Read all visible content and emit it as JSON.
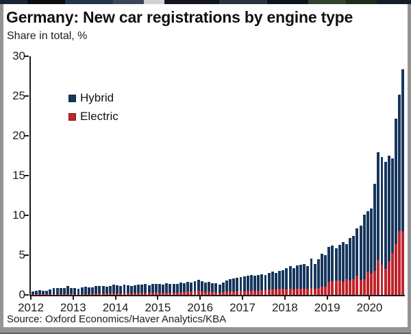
{
  "header": {
    "title": "Germany: New car registrations by engine type",
    "subtitle": "Share in total, %"
  },
  "source": "Source: Oxford Economics/Haver Analytics/KBA",
  "legend": [
    {
      "label": "Hybrid",
      "color": "#17365d"
    },
    {
      "label": "Electric",
      "color": "#c0242c"
    }
  ],
  "chart_data": {
    "type": "bar",
    "stacked": true,
    "title": "Germany: New car registrations by engine type",
    "ylabel": "Share in total, %",
    "x_start": "2012-01",
    "x_end": "2020-10",
    "months_per_year": 12,
    "x_tick_labels": [
      "2012",
      "2013",
      "2014",
      "2015",
      "2016",
      "2017",
      "2018",
      "2019",
      "2020"
    ],
    "ylim": [
      0,
      30
    ],
    "y_ticks": [
      0,
      5,
      10,
      15,
      20,
      25,
      30
    ],
    "grid": false,
    "legend_position": "upper-left",
    "series": [
      {
        "name": "Hybrid",
        "color": "#17365d",
        "values": [
          0.35,
          0.5,
          0.5,
          0.4,
          0.4,
          0.55,
          0.75,
          0.8,
          0.8,
          0.8,
          1.0,
          0.75,
          0.8,
          0.7,
          0.85,
          0.95,
          0.85,
          0.8,
          1.0,
          0.9,
          0.95,
          0.85,
          0.9,
          1.0,
          1.05,
          0.95,
          1.1,
          1.0,
          0.95,
          1.0,
          1.05,
          1.0,
          1.15,
          1.0,
          1.1,
          1.05,
          1.1,
          1.0,
          1.15,
          1.05,
          1.1,
          1.05,
          1.2,
          1.1,
          1.25,
          1.15,
          1.3,
          1.4,
          1.3,
          1.2,
          1.2,
          1.15,
          1.1,
          1.0,
          1.2,
          1.45,
          1.6,
          1.65,
          1.7,
          1.7,
          1.85,
          1.95,
          2.0,
          1.9,
          1.95,
          2.0,
          1.9,
          2.1,
          2.2,
          2.1,
          2.25,
          2.3,
          2.7,
          2.85,
          2.7,
          2.95,
          3.0,
          3.1,
          2.8,
          3.75,
          3.1,
          3.6,
          4.2,
          4.0,
          4.4,
          4.5,
          4.1,
          4.5,
          5.0,
          4.4,
          5.4,
          5.4,
          6.0,
          6.8,
          8.1,
          7.6,
          8.2,
          11.0,
          13.5,
          13.5,
          13.4,
          13.3,
          11.9,
          15.8,
          17.2,
          20.4
        ]
      },
      {
        "name": "Electric",
        "color": "#c0242c",
        "values": [
          0.05,
          0.05,
          0.1,
          0.1,
          0.1,
          0.1,
          0.1,
          0.1,
          0.1,
          0.1,
          0.1,
          0.15,
          0.1,
          0.1,
          0.1,
          0.1,
          0.1,
          0.15,
          0.15,
          0.2,
          0.2,
          0.2,
          0.25,
          0.3,
          0.2,
          0.2,
          0.2,
          0.25,
          0.2,
          0.25,
          0.25,
          0.3,
          0.25,
          0.25,
          0.3,
          0.35,
          0.25,
          0.3,
          0.3,
          0.3,
          0.3,
          0.3,
          0.35,
          0.35,
          0.4,
          0.4,
          0.45,
          0.5,
          0.4,
          0.35,
          0.4,
          0.35,
          0.35,
          0.3,
          0.35,
          0.4,
          0.4,
          0.45,
          0.45,
          0.5,
          0.45,
          0.5,
          0.5,
          0.5,
          0.55,
          0.6,
          0.6,
          0.65,
          0.7,
          0.7,
          0.75,
          0.8,
          0.7,
          0.75,
          0.7,
          0.75,
          0.8,
          0.8,
          0.8,
          0.85,
          0.8,
          0.9,
          1.0,
          1.0,
          1.6,
          1.7,
          1.8,
          1.8,
          1.6,
          2.0,
          1.8,
          2.0,
          2.4,
          1.9,
          2.0,
          2.9,
          2.7,
          3.0,
          4.4,
          3.8,
          3.3,
          4.2,
          5.3,
          6.4,
          8.0,
          8.0
        ]
      }
    ]
  }
}
